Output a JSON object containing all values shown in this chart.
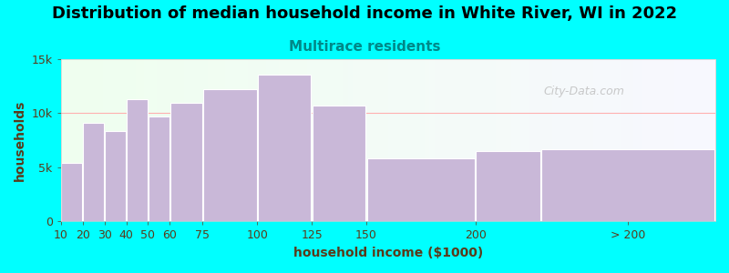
{
  "title": "Distribution of median household income in White River, WI in 2022",
  "subtitle": "Multirace residents",
  "xlabel": "household income ($1000)",
  "ylabel": "households",
  "bar_color": "#c9b8d8",
  "bar_edge_color": "#ffffff",
  "background_color": "#00ffff",
  "plot_bg_left": "#efffef",
  "plot_bg_right": "#f8f8ff",
  "categories": [
    "10",
    "20",
    "30",
    "40",
    "50",
    "60",
    "75",
    "100",
    "125",
    "150",
    "200",
    "> 200"
  ],
  "values": [
    5400,
    9100,
    8400,
    11300,
    9700,
    11000,
    12200,
    13600,
    10700,
    5800,
    6500,
    6700
  ],
  "bin_lefts": [
    10,
    20,
    30,
    40,
    50,
    60,
    75,
    100,
    125,
    150,
    200,
    230
  ],
  "bin_widths": [
    10,
    10,
    10,
    10,
    10,
    15,
    25,
    25,
    25,
    50,
    30,
    80
  ],
  "ylim": [
    0,
    15000
  ],
  "xlim": [
    10,
    310
  ],
  "yticks": [
    0,
    5000,
    10000,
    15000
  ],
  "ytick_labels": [
    "0",
    "5k",
    "10k",
    "15k"
  ],
  "xtick_positions": [
    10,
    20,
    30,
    40,
    50,
    60,
    75,
    100,
    125,
    150,
    200,
    270
  ],
  "xtick_labels": [
    "10",
    "20",
    "30",
    "40",
    "50",
    "60",
    "75",
    "100",
    "125",
    "150",
    "200",
    "> 200"
  ],
  "title_fontsize": 13,
  "subtitle_fontsize": 11,
  "axis_label_fontsize": 10,
  "tick_fontsize": 9,
  "title_color": "#000000",
  "subtitle_color": "#008888",
  "axis_label_color": "#5a3a1a",
  "tick_color": "#5a3a1a",
  "watermark": "City-Data.com",
  "watermark_color": "#c0c0c0",
  "hline_y": 10000,
  "hline_color": "#ffb0b0"
}
